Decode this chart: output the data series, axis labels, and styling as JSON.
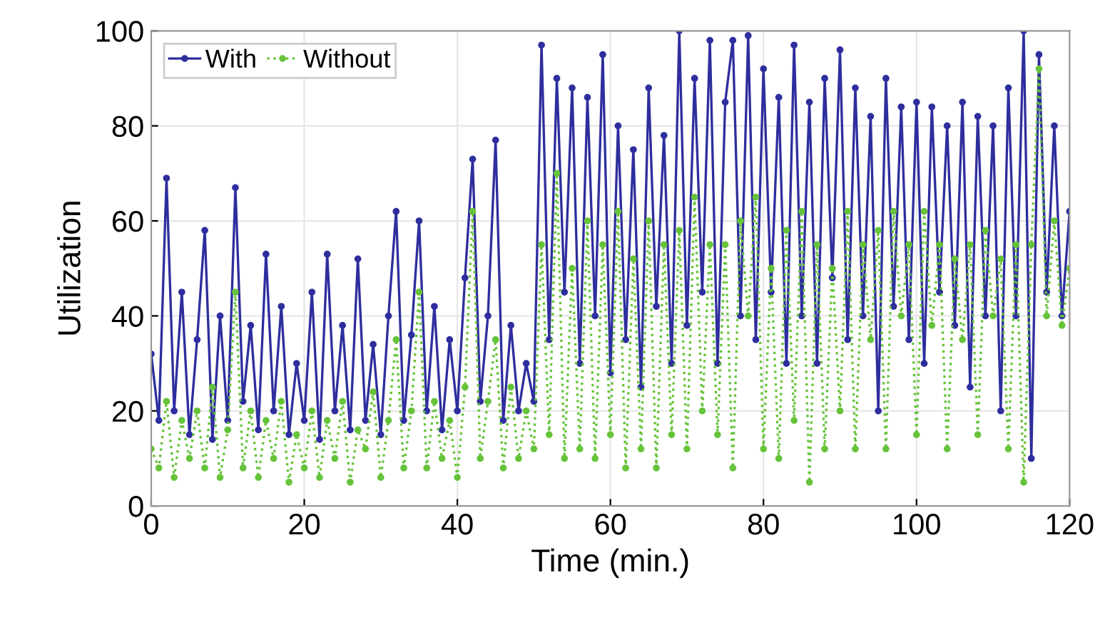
{
  "chart_data": {
    "type": "line",
    "xlabel": "Time (min.)",
    "ylabel": "Utilization",
    "x": [
      0,
      1,
      2,
      3,
      4,
      5,
      6,
      7,
      8,
      9,
      10,
      11,
      12,
      13,
      14,
      15,
      16,
      17,
      18,
      19,
      20,
      21,
      22,
      23,
      24,
      25,
      26,
      27,
      28,
      29,
      30,
      31,
      32,
      33,
      34,
      35,
      36,
      37,
      38,
      39,
      40,
      41,
      42,
      43,
      44,
      45,
      46,
      47,
      48,
      49,
      50,
      51,
      52,
      53,
      54,
      55,
      56,
      57,
      58,
      59,
      60,
      61,
      62,
      63,
      64,
      65,
      66,
      67,
      68,
      69,
      70,
      71,
      72,
      73,
      74,
      75,
      76,
      77,
      78,
      79,
      80,
      81,
      82,
      83,
      84,
      85,
      86,
      87,
      88,
      89,
      90,
      91,
      92,
      93,
      94,
      95,
      96,
      97,
      98,
      99,
      100,
      101,
      102,
      103,
      104,
      105,
      106,
      107,
      108,
      109,
      110,
      111,
      112,
      113,
      114,
      115,
      116,
      117,
      118,
      119,
      120
    ],
    "series": [
      {
        "name": "With",
        "color": "#2e2e9e",
        "line_style": "solid",
        "values": [
          32,
          18,
          69,
          20,
          45,
          15,
          35,
          58,
          14,
          40,
          18,
          67,
          22,
          38,
          16,
          53,
          20,
          42,
          15,
          30,
          18,
          45,
          14,
          53,
          20,
          38,
          16,
          52,
          18,
          34,
          15,
          40,
          62,
          18,
          36,
          60,
          20,
          42,
          16,
          35,
          20,
          48,
          73,
          22,
          40,
          77,
          18,
          38,
          20,
          30,
          22,
          97,
          35,
          90,
          45,
          88,
          30,
          86,
          40,
          95,
          28,
          80,
          35,
          75,
          25,
          88,
          42,
          78,
          30,
          100,
          38,
          90,
          45,
          98,
          30,
          85,
          98,
          40,
          99,
          35,
          92,
          45,
          86,
          30,
          97,
          40,
          85,
          30,
          90,
          48,
          96,
          35,
          88,
          40,
          82,
          20,
          90,
          42,
          84,
          35,
          85,
          30,
          84,
          45,
          80,
          38,
          85,
          25,
          82,
          40,
          80,
          20,
          88,
          40,
          100,
          10,
          95,
          45,
          80,
          40,
          62
        ]
      },
      {
        "name": "Without",
        "color": "#66c33a",
        "line_style": "dotted",
        "values": [
          12,
          8,
          22,
          6,
          18,
          10,
          20,
          8,
          25,
          6,
          16,
          45,
          8,
          20,
          6,
          18,
          10,
          22,
          5,
          15,
          8,
          20,
          6,
          18,
          10,
          22,
          5,
          16,
          12,
          24,
          6,
          18,
          35,
          8,
          20,
          45,
          8,
          22,
          10,
          18,
          6,
          25,
          62,
          10,
          22,
          35,
          8,
          25,
          10,
          20,
          12,
          55,
          15,
          70,
          10,
          50,
          12,
          60,
          10,
          55,
          15,
          62,
          8,
          52,
          12,
          60,
          8,
          55,
          15,
          58,
          12,
          65,
          20,
          55,
          15,
          55,
          8,
          60,
          40,
          65,
          12,
          50,
          10,
          58,
          18,
          62,
          5,
          55,
          12,
          50,
          20,
          62,
          12,
          55,
          35,
          58,
          12,
          62,
          40,
          55,
          15,
          62,
          38,
          55,
          12,
          52,
          35,
          55,
          15,
          58,
          40,
          52,
          12,
          55,
          5,
          55,
          92,
          40,
          60,
          38,
          50
        ]
      }
    ],
    "xlim": [
      0,
      120
    ],
    "xticks": [
      0,
      20,
      40,
      60,
      80,
      100,
      120
    ],
    "ylim": [
      0,
      100
    ],
    "yticks": [
      0,
      20,
      40,
      60,
      80,
      100
    ],
    "grid": true,
    "legend": "top left",
    "marker": "circle"
  }
}
